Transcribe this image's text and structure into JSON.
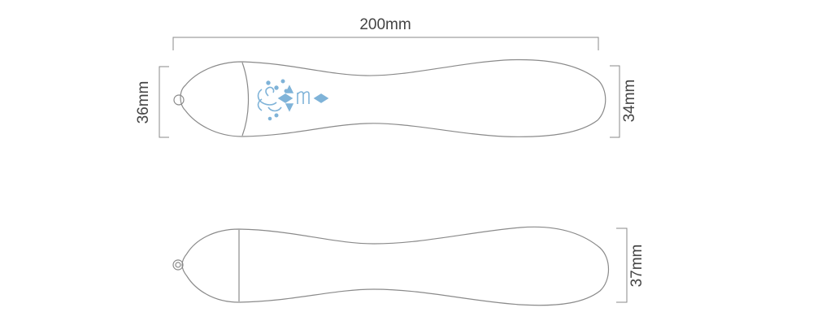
{
  "dimensions": {
    "length": "200mm",
    "head_height_top_view": "36mm",
    "tail_height_top_view": "34mm",
    "tail_height_side_view": "37mm"
  },
  "colors": {
    "outline": "#8a8a8a",
    "label": "#444444",
    "decoration": "#7fb3d8"
  },
  "icons": [
    "brand-logo-icon"
  ]
}
